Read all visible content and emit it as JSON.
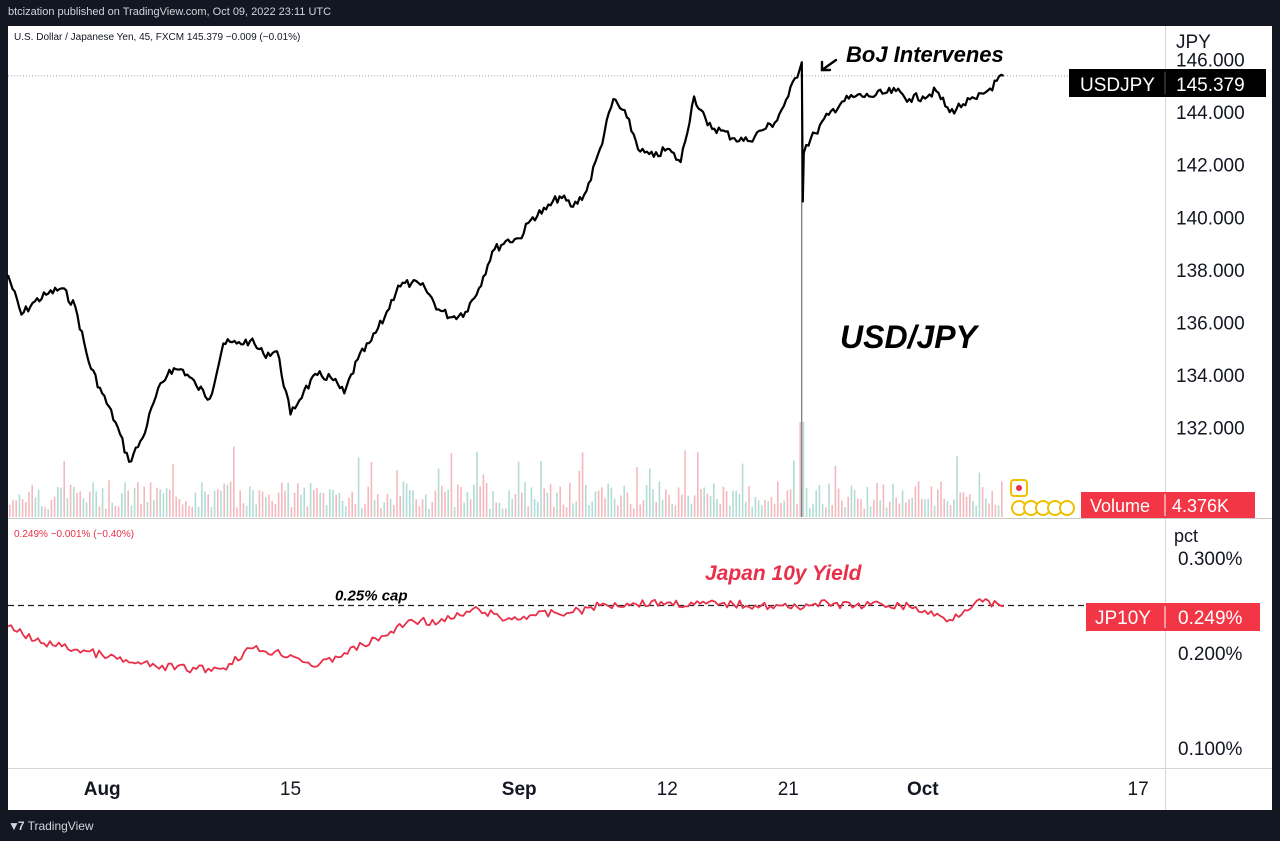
{
  "header": {
    "publisher_line": "btcization published on TradingView.com, Oct 09, 2022 23:11 UTC"
  },
  "footer": {
    "brand": "TradingView",
    "logo_icon": "tradingview-logo-icon"
  },
  "colors": {
    "price_line": "#000000",
    "yield_line": "#e8304a",
    "vol_up": "#9fd4cc",
    "vol_down": "#f2a7ac",
    "badge_dark": "#000000",
    "badge_red": "#f23645"
  },
  "chart_data": [
    {
      "type": "line",
      "symbol_info": "U.S. Dollar / Japanese Yen, 45, FXCM  145.379  −0.009 (−0.01%)",
      "title": "USD/JPY",
      "ylabel": "JPY",
      "ylim": [
        128.6,
        147.2
      ],
      "yticks": [
        "146.000",
        "144.000",
        "142.000",
        "140.000",
        "138.000",
        "136.000",
        "134.000",
        "132.000"
      ],
      "xlim": [
        "2022-07-25",
        "2022-10-19"
      ],
      "xticks": [
        {
          "date": "2022-08-01",
          "label": "Aug"
        },
        {
          "date": "2022-08-15",
          "label": "15"
        },
        {
          "date": "2022-09-01",
          "label": "Sep"
        },
        {
          "date": "2022-09-12",
          "label": "12"
        },
        {
          "date": "2022-09-21",
          "label": "21"
        },
        {
          "date": "2022-10-01",
          "label": "Oct"
        },
        {
          "date": "2022-10-17",
          "label": "17"
        }
      ],
      "last_value_label": {
        "name": "USDJPY",
        "value": "145.379"
      },
      "annotation": "BoJ Intervenes",
      "series": [
        {
          "x": [
            "2022-07-25",
            "2022-07-26",
            "2022-07-27",
            "2022-07-28",
            "2022-07-29",
            "2022-07-30",
            "2022-07-31",
            "2022-08-01",
            "2022-08-02",
            "2022-08-03",
            "2022-08-04",
            "2022-08-05",
            "2022-08-06",
            "2022-08-07",
            "2022-08-08",
            "2022-08-09",
            "2022-08-10",
            "2022-08-11",
            "2022-08-12",
            "2022-08-13",
            "2022-08-14",
            "2022-08-15",
            "2022-08-16",
            "2022-08-17",
            "2022-08-18",
            "2022-08-19",
            "2022-08-20",
            "2022-08-21",
            "2022-08-22",
            "2022-08-23",
            "2022-08-24",
            "2022-08-25",
            "2022-08-26",
            "2022-08-27",
            "2022-08-28",
            "2022-08-29",
            "2022-08-30",
            "2022-08-31",
            "2022-09-01",
            "2022-09-02",
            "2022-09-03",
            "2022-09-04",
            "2022-09-05",
            "2022-09-06",
            "2022-09-07",
            "2022-09-08",
            "2022-09-09",
            "2022-09-10",
            "2022-09-11",
            "2022-09-12",
            "2022-09-13",
            "2022-09-14",
            "2022-09-15",
            "2022-09-16",
            "2022-09-17",
            "2022-09-18",
            "2022-09-19",
            "2022-09-20",
            "2022-09-21",
            "2022-09-22",
            "2022-09-22",
            "2022-09-22",
            "2022-09-23",
            "2022-09-24",
            "2022-09-25",
            "2022-09-26",
            "2022-09-27",
            "2022-09-28",
            "2022-09-29",
            "2022-09-30",
            "2022-10-01",
            "2022-10-02",
            "2022-10-03",
            "2022-10-04",
            "2022-10-05",
            "2022-10-06",
            "2022-10-07"
          ],
          "values": [
            137.8,
            136.3,
            136.8,
            137.1,
            137.3,
            136.6,
            134.5,
            133.3,
            132.2,
            130.7,
            131.6,
            133.2,
            134.2,
            134.2,
            133.6,
            133.1,
            135.2,
            135.2,
            135.3,
            134.8,
            134.9,
            132.5,
            133.4,
            134.0,
            133.9,
            133.3,
            134.6,
            135.3,
            136.2,
            137.4,
            137.5,
            137.3,
            136.5,
            136.2,
            136.4,
            137.3,
            138.7,
            139.1,
            139.2,
            140.0,
            140.3,
            140.8,
            140.4,
            141.0,
            142.6,
            144.5,
            143.8,
            142.5,
            142.3,
            142.6,
            142.1,
            144.6,
            143.5,
            143.3,
            143.0,
            142.9,
            143.3,
            143.6,
            144.6,
            145.9,
            140.6,
            142.5,
            143.2,
            143.9,
            144.4,
            144.6,
            144.6,
            144.7,
            144.8,
            144.5,
            144.6,
            144.8,
            144.0,
            144.3,
            144.5,
            144.9,
            145.379
          ]
        }
      ]
    },
    {
      "type": "bar",
      "name": "Volume",
      "last_value_label": {
        "name": "Volume",
        "value": "4.376K"
      }
    },
    {
      "type": "line",
      "symbol_info": "0.249%  −0.001% (−0.40%)",
      "title": "Japan 10y Yield",
      "ylabel": "pct",
      "ylim": [
        0.08,
        0.34
      ],
      "yticks": [
        "0.300%",
        "0.200%",
        "0.100%"
      ],
      "cap_line": {
        "value": 0.25,
        "label": "0.25% cap"
      },
      "last_value_label": {
        "name": "JP10Y",
        "value": "0.249%"
      },
      "series": [
        {
          "x": [
            "2022-07-25",
            "2022-07-27",
            "2022-07-29",
            "2022-08-01",
            "2022-08-03",
            "2022-08-05",
            "2022-08-08",
            "2022-08-10",
            "2022-08-12",
            "2022-08-15",
            "2022-08-17",
            "2022-08-19",
            "2022-08-22",
            "2022-08-24",
            "2022-08-26",
            "2022-08-29",
            "2022-08-31",
            "2022-09-02",
            "2022-09-05",
            "2022-09-07",
            "2022-09-09",
            "2022-09-12",
            "2022-09-14",
            "2022-09-16",
            "2022-09-19",
            "2022-09-21",
            "2022-09-23",
            "2022-09-26",
            "2022-09-28",
            "2022-09-30",
            "2022-10-03",
            "2022-10-05",
            "2022-10-07"
          ],
          "values": [
            0.228,
            0.213,
            0.207,
            0.198,
            0.19,
            0.186,
            0.183,
            0.184,
            0.205,
            0.198,
            0.186,
            0.2,
            0.218,
            0.235,
            0.232,
            0.246,
            0.235,
            0.24,
            0.243,
            0.25,
            0.252,
            0.253,
            0.251,
            0.252,
            0.25,
            0.248,
            0.252,
            0.25,
            0.251,
            0.249,
            0.235,
            0.255,
            0.249
          ]
        }
      ]
    }
  ]
}
